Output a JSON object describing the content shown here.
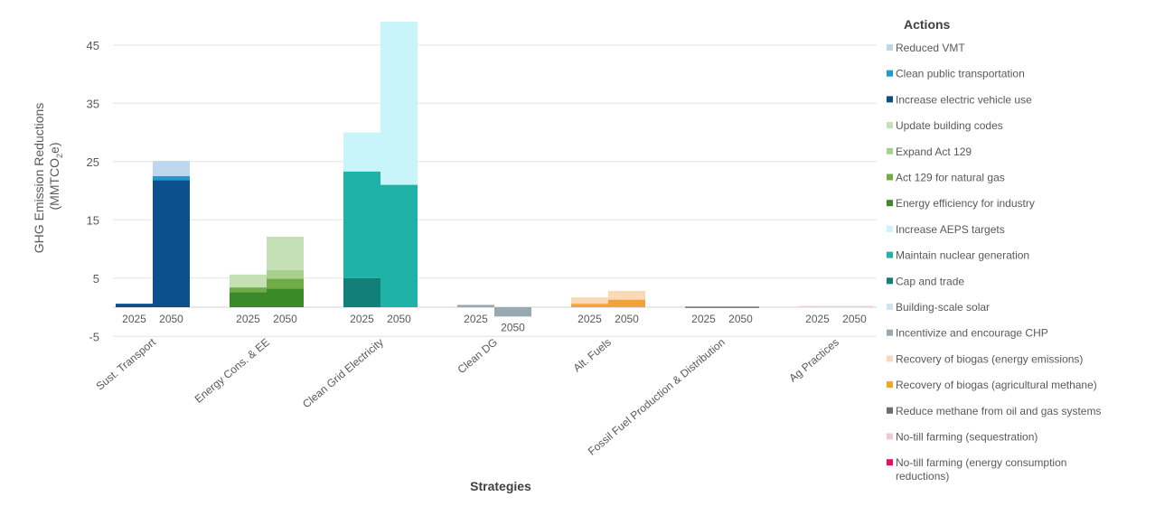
{
  "chart_data": {
    "type": "bar",
    "stacked": true,
    "xlabel": "Strategies",
    "ylabel_line1": "GHG Emission Reductions",
    "ylabel_line2_prefix": "(MMTCO",
    "ylabel_line2_sub": "2",
    "ylabel_line2_suffix": "e)",
    "ylim": [
      -6,
      50
    ],
    "yticks": [
      45,
      35,
      25,
      15,
      5,
      -5
    ],
    "categories": [
      "Sust. Transport",
      "Energy Cons. & EE",
      "Clean Grid Electricity",
      "Clean DG",
      "Alt. Fuels",
      "Fossil Fuel Production & Distribution",
      "Ag Practices"
    ],
    "years": [
      "2025",
      "2050"
    ],
    "legend_title": "Actions",
    "legend_position": "right",
    "series": [
      {
        "name": "Reduced VMT",
        "color": "#bdd7ee"
      },
      {
        "name": "Clean public transportation",
        "color": "#1f9bd1"
      },
      {
        "name": "Increase electric vehicle use",
        "color": "#0b4f8c"
      },
      {
        "name": "Update building codes",
        "color": "#c5e0b4"
      },
      {
        "name": "Expand Act 129",
        "color": "#a9d18e"
      },
      {
        "name": "Act 129 for natural gas",
        "color": "#70ad47"
      },
      {
        "name": "Energy efficiency for industry",
        "color": "#3a8a2a"
      },
      {
        "name": "Increase AEPS targets",
        "color": "#c9f4fa"
      },
      {
        "name": "Maintain nuclear generation",
        "color": "#1fb3a8"
      },
      {
        "name": "Cap and trade",
        "color": "#127f78"
      },
      {
        "name": "Building-scale solar",
        "color": "#d6e2ea"
      },
      {
        "name": "Incentivize and encourage CHP",
        "color": "#98a9b2"
      },
      {
        "name": "Recovery of biogas (energy emissions)",
        "color": "#fbd9b6"
      },
      {
        "name": "Recovery of biogas (agricultural methane)",
        "color": "#f2a23a"
      },
      {
        "name": "Reduce methane from oil and gas systems",
        "color": "#6d6d6d"
      },
      {
        "name": "No-till farming (sequestration)",
        "color": "#f4c7d6"
      },
      {
        "name": "No-till farming (energy consumption reductions)",
        "color": "#e0115f"
      }
    ],
    "stacks": [
      [
        {
          "positive": [
            [
              "Increase electric vehicle use",
              0.6
            ]
          ],
          "negative": []
        },
        {
          "positive": [
            [
              "Increase electric vehicle use",
              21.8
            ],
            [
              "Clean public transportation",
              0.7
            ],
            [
              "Reduced VMT",
              2.6
            ]
          ],
          "negative": []
        }
      ],
      [
        {
          "positive": [
            [
              "Energy efficiency for industry",
              2.6
            ],
            [
              "Act 129 for natural gas",
              0.8
            ],
            [
              "Update building codes",
              2.2
            ]
          ],
          "negative": []
        },
        {
          "positive": [
            [
              "Energy efficiency for industry",
              3.2
            ],
            [
              "Act 129 for natural gas",
              1.7
            ],
            [
              "Expand Act 129",
              1.5
            ],
            [
              "Update building codes",
              5.7
            ]
          ],
          "negative": []
        }
      ],
      [
        {
          "positive": [
            [
              "Cap and trade",
              5.0
            ],
            [
              "Maintain nuclear generation",
              18.3
            ],
            [
              "Increase AEPS targets",
              6.7
            ]
          ],
          "negative": []
        },
        {
          "positive": [
            [
              "Maintain nuclear generation",
              21.0
            ],
            [
              "Increase AEPS targets",
              28.0
            ]
          ],
          "negative": []
        }
      ],
      [
        {
          "positive": [
            [
              "Incentivize and encourage CHP",
              0.4
            ]
          ],
          "negative": []
        },
        {
          "positive": [],
          "negative": [
            [
              "Incentivize and encourage CHP",
              1.6
            ]
          ]
        }
      ],
      [
        {
          "positive": [
            [
              "Recovery of biogas (agricultural methane)",
              0.6
            ],
            [
              "Recovery of biogas (energy emissions)",
              1.1
            ]
          ],
          "negative": []
        },
        {
          "positive": [
            [
              "Recovery of biogas (agricultural methane)",
              1.3
            ],
            [
              "Recovery of biogas (energy emissions)",
              1.5
            ]
          ],
          "negative": []
        }
      ],
      [
        {
          "positive": [
            [
              "Reduce methane from oil and gas systems",
              0.1
            ]
          ],
          "negative": []
        },
        {
          "positive": [
            [
              "Reduce methane from oil and gas systems",
              0.1
            ]
          ],
          "negative": []
        }
      ],
      [
        {
          "positive": [
            [
              "No-till farming (sequestration)",
              0.2
            ]
          ],
          "negative": []
        },
        {
          "positive": [
            [
              "No-till farming (sequestration)",
              0.2
            ]
          ],
          "negative": []
        }
      ]
    ]
  }
}
